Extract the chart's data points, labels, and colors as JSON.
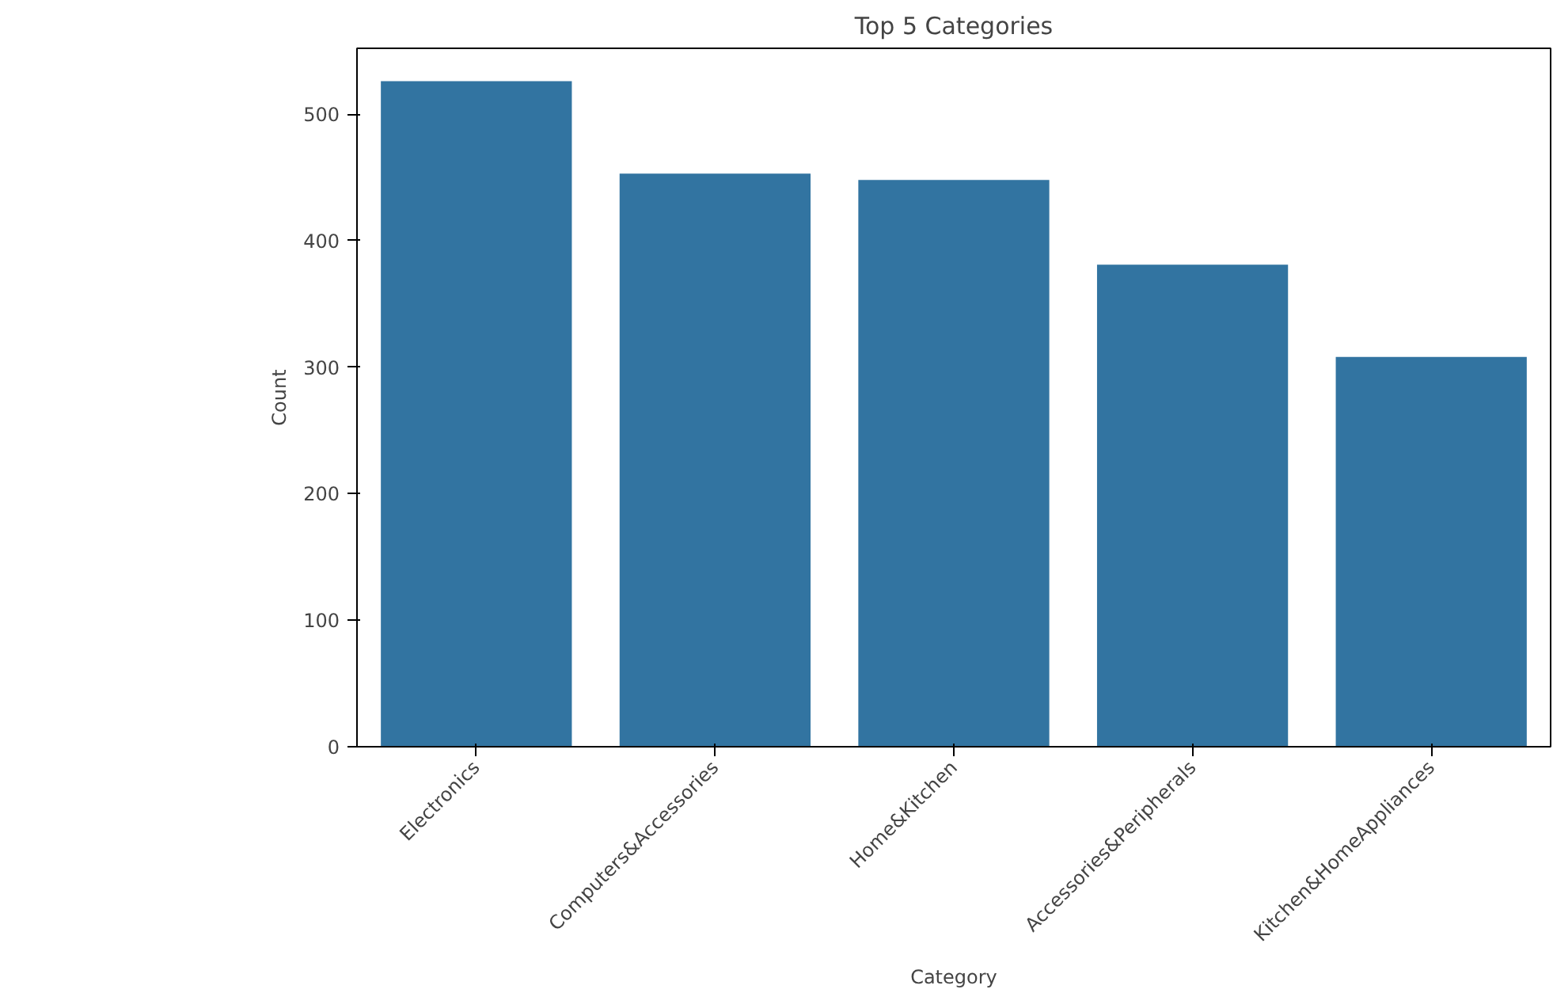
{
  "chart_data": {
    "type": "bar",
    "title": "Top 5 Categories",
    "xlabel": "Category",
    "ylabel": "Count",
    "categories": [
      "Electronics",
      "Computers&Accessories",
      "Home&Kitchen",
      "Accessories&Peripherals",
      "Kitchen&HomeAppliances"
    ],
    "values": [
      526,
      453,
      448,
      381,
      308
    ],
    "color": "#3274a1",
    "ylim": [
      0,
      552
    ],
    "yticks": [
      0,
      100,
      200,
      300,
      400,
      500
    ],
    "grid": false
  }
}
